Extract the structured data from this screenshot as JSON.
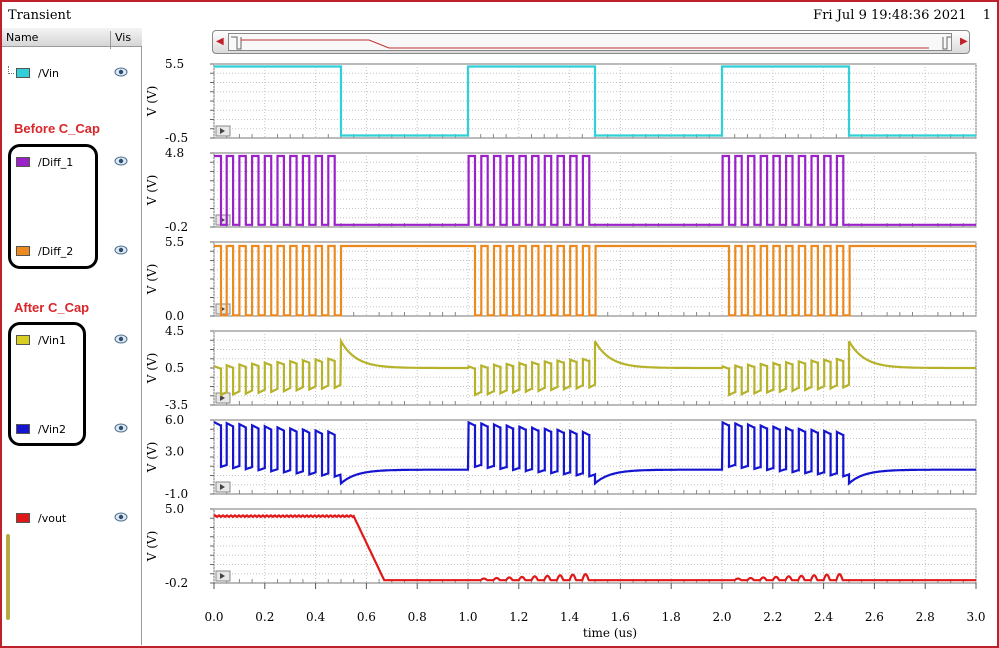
{
  "window": {
    "title": "Transient",
    "timestamp": "Fri Jul 9 19:48:36 2021",
    "page_number": "1"
  },
  "signal_browser": {
    "name_header": "Name",
    "vis_header": "Vis",
    "group_labels": [
      "Before C_Cap",
      "After C_Cap"
    ],
    "eye_icon": "eye-icon",
    "signals": [
      {
        "name": "/Vin",
        "color": "#2fd0d8"
      },
      {
        "name": "/Diff_1",
        "color": "#9a22c8"
      },
      {
        "name": "/Diff_2",
        "color": "#ec8a20"
      },
      {
        "name": "/Vin1",
        "color": "#b6b22a"
      },
      {
        "name": "/Vin2",
        "color": "#1515d0"
      },
      {
        "name": "/vout",
        "color": "#e01818"
      }
    ]
  },
  "chart_data": {
    "type": "line",
    "xlabel": "time (us)",
    "xlim": [
      0.0,
      3.0
    ],
    "xticks": [
      "0.0",
      "0.2",
      "0.4",
      "0.6",
      "0.8",
      "1.0",
      "1.2",
      "1.4",
      "1.6",
      "1.8",
      "2.0",
      "2.2",
      "2.4",
      "2.6",
      "2.8",
      "3.0"
    ],
    "grid": true,
    "strips": [
      {
        "name": "/Vin",
        "ylabel": "V (V)",
        "ylim": [
          -0.5,
          5.5
        ],
        "yticks": [
          "5.5",
          "-0.5"
        ],
        "color": "#2fd0d8",
        "description_points": [
          [
            0.0,
            5.3
          ],
          [
            0.5,
            5.3
          ],
          [
            0.5,
            -0.3
          ],
          [
            1.0,
            -0.3
          ],
          [
            1.0,
            5.3
          ],
          [
            1.5,
            5.3
          ],
          [
            1.5,
            -0.3
          ],
          [
            2.0,
            -0.3
          ],
          [
            2.0,
            5.3
          ],
          [
            2.5,
            5.3
          ],
          [
            2.5,
            -0.3
          ],
          [
            3.0,
            -0.3
          ]
        ]
      },
      {
        "name": "/Diff_1",
        "ylabel": "V (V)",
        "ylim": [
          -0.2,
          4.8
        ],
        "yticks": [
          "4.8",
          "-0.2"
        ],
        "color": "#9a22c8",
        "burst": {
          "on": [
            [
              0.0,
              0.5
            ],
            [
              1.0,
              1.5
            ],
            [
              2.0,
              2.5
            ]
          ],
          "period": 0.05,
          "high": 4.6,
          "low": -0.05,
          "idle": -0.05
        }
      },
      {
        "name": "/Diff_2",
        "ylabel": "V (V)",
        "ylim": [
          0.0,
          5.5
        ],
        "yticks": [
          "5.5",
          "0.0"
        ],
        "color": "#ec8a20",
        "burst": {
          "on": [
            [
              0.0,
              0.5
            ],
            [
              1.0,
              1.5
            ],
            [
              2.0,
              2.5
            ]
          ],
          "period": 0.05,
          "high": 5.2,
          "low": 0.05,
          "idle": 5.2
        }
      },
      {
        "name": "/Vin1",
        "ylabel": "V (V)",
        "ylim": [
          -3.5,
          4.5
        ],
        "yticks": [
          "4.5",
          "0.5",
          "-3.5"
        ],
        "color": "#b6b22a",
        "burst": {
          "on": [
            [
              0.0,
              0.5
            ],
            [
              1.0,
              1.5
            ],
            [
              2.0,
              2.5
            ]
          ],
          "period": 0.05,
          "start": -2.5,
          "swing": 3.2,
          "settle_high": 3.4,
          "idle": 0.5
        }
      },
      {
        "name": "/Vin2",
        "ylabel": "V (V)",
        "ylim": [
          -1.0,
          6.0
        ],
        "yticks": [
          "6.0",
          "3.0",
          "-1.0"
        ],
        "color": "#1515d0",
        "burst": {
          "on": [
            [
              0.0,
              0.5
            ],
            [
              1.0,
              1.5
            ],
            [
              2.0,
              2.5
            ]
          ],
          "period": 0.05,
          "start": 5.8,
          "swing": 4.2,
          "settle_low": 0.0,
          "idle": 1.3
        }
      },
      {
        "name": "/vout",
        "ylabel": "V (V)",
        "ylim": [
          -0.2,
          5.0
        ],
        "yticks": [
          "5.0",
          "-0.2"
        ],
        "color": "#e01818",
        "description_points": [
          [
            0.0,
            4.5
          ],
          [
            0.55,
            4.5
          ],
          [
            0.67,
            0.0
          ],
          [
            3.0,
            0.0
          ]
        ]
      }
    ]
  }
}
